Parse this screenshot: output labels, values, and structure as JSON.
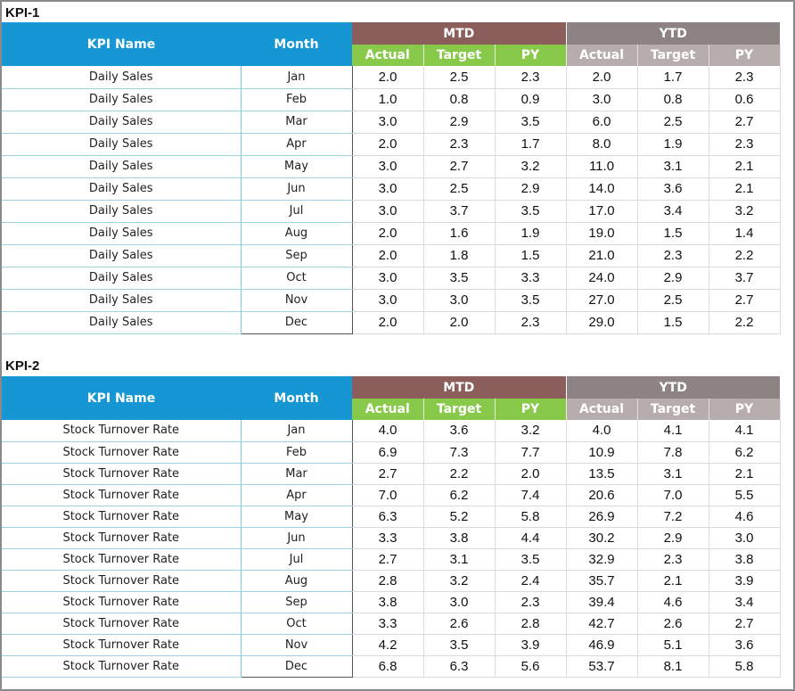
{
  "kpi1": {
    "title": "KPI-1",
    "headers": {
      "kpi_name": "KPI Name",
      "month": "Month",
      "mtd": "MTD",
      "ytd": "YTD",
      "actual": "Actual",
      "target": "Target",
      "py": "PY"
    },
    "rows": [
      {
        "name": "Daily Sales",
        "month": "Jan",
        "mtd_actual": "2.0",
        "mtd_target": "2.5",
        "mtd_py": "2.3",
        "ytd_actual": "2.0",
        "ytd_target": "1.7",
        "ytd_py": "2.3"
      },
      {
        "name": "Daily Sales",
        "month": "Feb",
        "mtd_actual": "1.0",
        "mtd_target": "0.8",
        "mtd_py": "0.9",
        "ytd_actual": "3.0",
        "ytd_target": "0.8",
        "ytd_py": "0.6"
      },
      {
        "name": "Daily Sales",
        "month": "Mar",
        "mtd_actual": "3.0",
        "mtd_target": "2.9",
        "mtd_py": "3.5",
        "ytd_actual": "6.0",
        "ytd_target": "2.5",
        "ytd_py": "2.7"
      },
      {
        "name": "Daily Sales",
        "month": "Apr",
        "mtd_actual": "2.0",
        "mtd_target": "2.3",
        "mtd_py": "1.7",
        "ytd_actual": "8.0",
        "ytd_target": "1.9",
        "ytd_py": "2.3"
      },
      {
        "name": "Daily Sales",
        "month": "May",
        "mtd_actual": "3.0",
        "mtd_target": "2.7",
        "mtd_py": "3.2",
        "ytd_actual": "11.0",
        "ytd_target": "3.1",
        "ytd_py": "2.1"
      },
      {
        "name": "Daily Sales",
        "month": "Jun",
        "mtd_actual": "3.0",
        "mtd_target": "2.5",
        "mtd_py": "2.9",
        "ytd_actual": "14.0",
        "ytd_target": "3.6",
        "ytd_py": "2.1"
      },
      {
        "name": "Daily Sales",
        "month": "Jul",
        "mtd_actual": "3.0",
        "mtd_target": "3.7",
        "mtd_py": "3.5",
        "ytd_actual": "17.0",
        "ytd_target": "3.4",
        "ytd_py": "3.2"
      },
      {
        "name": "Daily Sales",
        "month": "Aug",
        "mtd_actual": "2.0",
        "mtd_target": "1.6",
        "mtd_py": "1.9",
        "ytd_actual": "19.0",
        "ytd_target": "1.5",
        "ytd_py": "1.4"
      },
      {
        "name": "Daily Sales",
        "month": "Sep",
        "mtd_actual": "2.0",
        "mtd_target": "1.8",
        "mtd_py": "1.5",
        "ytd_actual": "21.0",
        "ytd_target": "2.3",
        "ytd_py": "2.2"
      },
      {
        "name": "Daily Sales",
        "month": "Oct",
        "mtd_actual": "3.0",
        "mtd_target": "3.5",
        "mtd_py": "3.3",
        "ytd_actual": "24.0",
        "ytd_target": "2.9",
        "ytd_py": "3.7"
      },
      {
        "name": "Daily Sales",
        "month": "Nov",
        "mtd_actual": "3.0",
        "mtd_target": "3.0",
        "mtd_py": "3.5",
        "ytd_actual": "27.0",
        "ytd_target": "2.5",
        "ytd_py": "2.7"
      },
      {
        "name": "Daily Sales",
        "month": "Dec",
        "mtd_actual": "2.0",
        "mtd_target": "2.0",
        "mtd_py": "2.3",
        "ytd_actual": "29.0",
        "ytd_target": "1.5",
        "ytd_py": "2.2"
      }
    ]
  },
  "kpi2": {
    "title": "KPI-2",
    "headers": {
      "kpi_name": "KPI Name",
      "month": "Month",
      "mtd": "MTD",
      "ytd": "YTD",
      "actual": "Actual",
      "target": "Target",
      "py": "PY"
    },
    "rows": [
      {
        "name": "Stock Turnover Rate",
        "month": "Jan",
        "mtd_actual": "4.0",
        "mtd_target": "3.6",
        "mtd_py": "3.2",
        "ytd_actual": "4.0",
        "ytd_target": "4.1",
        "ytd_py": "4.1"
      },
      {
        "name": "Stock Turnover Rate",
        "month": "Feb",
        "mtd_actual": "6.9",
        "mtd_target": "7.3",
        "mtd_py": "7.7",
        "ytd_actual": "10.9",
        "ytd_target": "7.8",
        "ytd_py": "6.2"
      },
      {
        "name": "Stock Turnover Rate",
        "month": "Mar",
        "mtd_actual": "2.7",
        "mtd_target": "2.2",
        "mtd_py": "2.0",
        "ytd_actual": "13.5",
        "ytd_target": "3.1",
        "ytd_py": "2.1"
      },
      {
        "name": "Stock Turnover Rate",
        "month": "Apr",
        "mtd_actual": "7.0",
        "mtd_target": "6.2",
        "mtd_py": "7.4",
        "ytd_actual": "20.6",
        "ytd_target": "7.0",
        "ytd_py": "5.5"
      },
      {
        "name": "Stock Turnover Rate",
        "month": "May",
        "mtd_actual": "6.3",
        "mtd_target": "5.2",
        "mtd_py": "5.8",
        "ytd_actual": "26.9",
        "ytd_target": "7.2",
        "ytd_py": "4.6"
      },
      {
        "name": "Stock Turnover Rate",
        "month": "Jun",
        "mtd_actual": "3.3",
        "mtd_target": "3.8",
        "mtd_py": "4.4",
        "ytd_actual": "30.2",
        "ytd_target": "2.9",
        "ytd_py": "3.0"
      },
      {
        "name": "Stock Turnover Rate",
        "month": "Jul",
        "mtd_actual": "2.7",
        "mtd_target": "3.1",
        "mtd_py": "3.5",
        "ytd_actual": "32.9",
        "ytd_target": "2.3",
        "ytd_py": "3.8"
      },
      {
        "name": "Stock Turnover Rate",
        "month": "Aug",
        "mtd_actual": "2.8",
        "mtd_target": "3.2",
        "mtd_py": "2.4",
        "ytd_actual": "35.7",
        "ytd_target": "2.1",
        "ytd_py": "3.9"
      },
      {
        "name": "Stock Turnover Rate",
        "month": "Sep",
        "mtd_actual": "3.8",
        "mtd_target": "3.0",
        "mtd_py": "2.3",
        "ytd_actual": "39.4",
        "ytd_target": "4.6",
        "ytd_py": "3.4"
      },
      {
        "name": "Stock Turnover Rate",
        "month": "Oct",
        "mtd_actual": "3.3",
        "mtd_target": "2.6",
        "mtd_py": "2.8",
        "ytd_actual": "42.7",
        "ytd_target": "2.6",
        "ytd_py": "2.7"
      },
      {
        "name": "Stock Turnover Rate",
        "month": "Nov",
        "mtd_actual": "4.2",
        "mtd_target": "3.5",
        "mtd_py": "3.9",
        "ytd_actual": "46.9",
        "ytd_target": "5.1",
        "ytd_py": "3.6"
      },
      {
        "name": "Stock Turnover Rate",
        "month": "Dec",
        "mtd_actual": "6.8",
        "mtd_target": "6.3",
        "mtd_py": "5.6",
        "ytd_actual": "53.7",
        "ytd_target": "8.1",
        "ytd_py": "5.8"
      }
    ]
  },
  "colors": {
    "header_blue": "#1697d4",
    "mtd_header": "#8b5d5b",
    "ytd_header": "#8e8383",
    "mtd_sub": "#88c94a",
    "ytd_sub": "#b8adad"
  }
}
